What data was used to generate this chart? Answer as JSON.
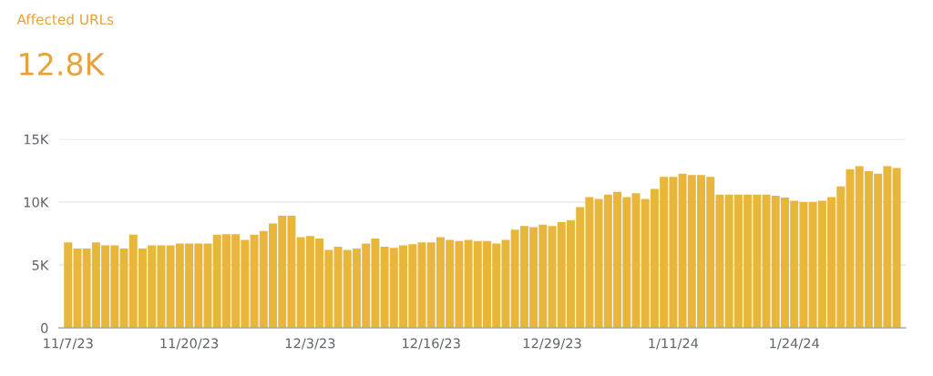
{
  "chart_data": {
    "type": "bar",
    "title": "Affected URLs",
    "subtitle": "12.8K",
    "categories": [
      "11/7/23",
      null,
      null,
      null,
      null,
      null,
      null,
      null,
      null,
      null,
      null,
      null,
      null,
      "11/20/23",
      null,
      null,
      null,
      null,
      null,
      null,
      null,
      null,
      null,
      null,
      null,
      null,
      "12/3/23",
      null,
      null,
      null,
      null,
      null,
      null,
      null,
      null,
      null,
      null,
      null,
      null,
      "12/16/23",
      null,
      null,
      null,
      null,
      null,
      null,
      null,
      null,
      null,
      null,
      null,
      null,
      "12/29/23",
      null,
      null,
      null,
      null,
      null,
      null,
      null,
      null,
      null,
      null,
      null,
      null,
      "1/11/24",
      null,
      null,
      null,
      null,
      null,
      null,
      null,
      null,
      null,
      null,
      null,
      null,
      "1/24/24",
      null,
      null,
      null,
      null,
      null,
      null,
      null,
      null,
      null,
      null,
      null
    ],
    "values": [
      6800,
      6300,
      6300,
      6800,
      6550,
      6550,
      6300,
      7400,
      6300,
      6550,
      6550,
      6550,
      6700,
      6700,
      6700,
      6700,
      7400,
      7450,
      7450,
      7000,
      7400,
      7700,
      8300,
      8900,
      8900,
      7200,
      7300,
      7100,
      6200,
      6450,
      6200,
      6300,
      6700,
      7100,
      6450,
      6350,
      6550,
      6650,
      6800,
      6800,
      7200,
      7000,
      6900,
      7000,
      6900,
      6900,
      6700,
      7000,
      7800,
      8100,
      8000,
      8200,
      8100,
      8400,
      8550,
      9600,
      10400,
      10250,
      10600,
      10800,
      10400,
      10700,
      10250,
      11050,
      12000,
      12000,
      12250,
      12150,
      12150,
      12000,
      10600,
      10600,
      10600,
      10600,
      10600,
      10600,
      10500,
      10350,
      10100,
      10000,
      10000,
      10100,
      10400,
      11250,
      12600,
      12850,
      12450,
      12250,
      12850,
      12700
    ],
    "color": "#e9b63c",
    "ylim": [
      0,
      15000
    ],
    "yticks": [
      {
        "value": 0,
        "label": "0"
      },
      {
        "value": 5000,
        "label": "5K"
      },
      {
        "value": 10000,
        "label": "10K"
      },
      {
        "value": 15000,
        "label": "15K"
      }
    ],
    "grid": "y",
    "legend": false
  }
}
